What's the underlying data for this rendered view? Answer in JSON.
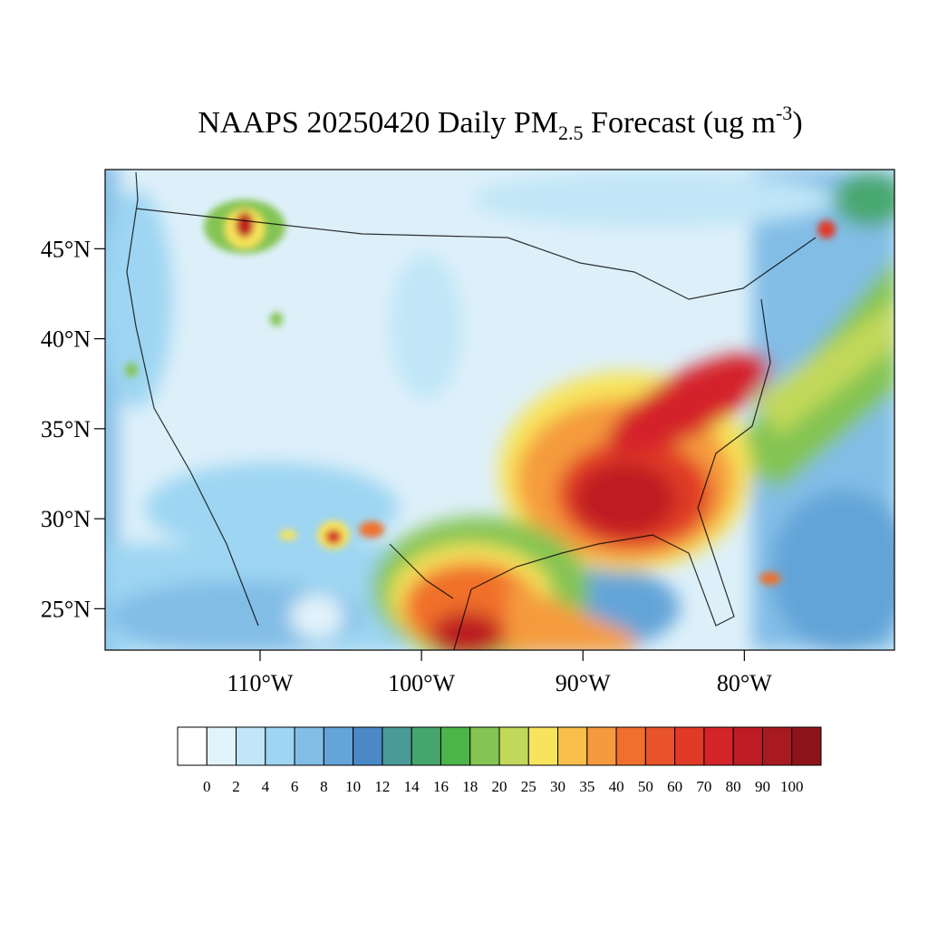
{
  "title_parts": [
    "NAAPS 20250420 Daily PM",
    "2.5",
    " Forecast (ug m",
    "-3",
    ")"
  ],
  "map": {
    "xlim": [
      -119.6,
      -70.7
    ],
    "ylim": [
      22.7,
      49.4
    ],
    "lat_ticks": [
      {
        "value": 45,
        "label": "45°N"
      },
      {
        "value": 40,
        "label": "40°N"
      },
      {
        "value": 35,
        "label": "35°N"
      },
      {
        "value": 30,
        "label": "30°N"
      },
      {
        "value": 25,
        "label": "25°N"
      }
    ],
    "lon_ticks": [
      {
        "value": -110,
        "label": "110°W"
      },
      {
        "value": -100,
        "label": "100°W"
      },
      {
        "value": -90,
        "label": "90°W"
      },
      {
        "value": -80,
        "label": "80°W"
      }
    ]
  },
  "colorbar": {
    "levels": [
      0,
      2,
      4,
      6,
      8,
      10,
      12,
      14,
      16,
      18,
      20,
      25,
      30,
      35,
      40,
      50,
      60,
      70,
      80,
      90,
      100
    ],
    "colors": [
      "#ffffff",
      "#e1f3fb",
      "#c0e6f7",
      "#9dd5f2",
      "#82bde6",
      "#64a4d8",
      "#4a88c6",
      "#4a9a98",
      "#46a56c",
      "#4bb54a",
      "#84c452",
      "#c2d85a",
      "#f8e45c",
      "#f7be4a",
      "#f59b3e",
      "#f06f2c",
      "#e8532a",
      "#e03a26",
      "#d42429",
      "#bd1c24",
      "#a81a1f",
      "#8d151a"
    ]
  }
}
